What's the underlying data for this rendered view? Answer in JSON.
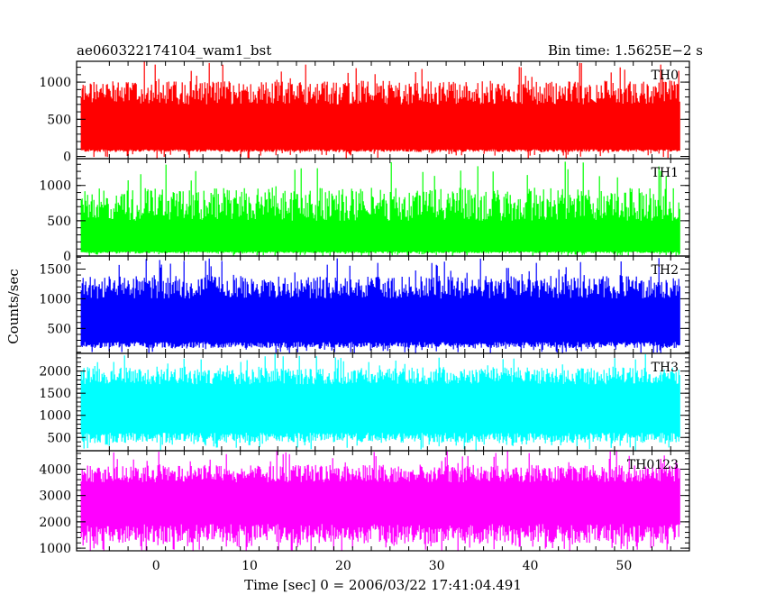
{
  "title_left": "ae060322174104_wam1_bst",
  "title_right": "Bin time: 1.5625E−2 s",
  "xlabel": "Time [sec] 0 = 2006/03/22 17:41:04.491",
  "ylabel": "Counts/sec",
  "chart_data": {
    "type": "line",
    "x_range": [
      -8.5,
      57
    ],
    "x_ticks": [
      0,
      10,
      20,
      30,
      40,
      50
    ],
    "x_tick_labels": [
      "0",
      "10",
      "20",
      "30",
      "40",
      "50"
    ],
    "x_data_range": [
      -8,
      56
    ],
    "bin_time": 0.015625,
    "series": [
      {
        "name": "TH0",
        "color": "#ff0000",
        "ylim": [
          -30,
          1280
        ],
        "y_ticks": [
          0,
          500,
          1000
        ],
        "y_tick_labels": [
          "0",
          "500",
          "1000"
        ],
        "baseline": 60,
        "peak_low": 700,
        "peak_high": 1280
      },
      {
        "name": "TH1",
        "color": "#00ff00",
        "ylim": [
          0,
          1380
        ],
        "y_ticks": [
          0,
          500,
          1000
        ],
        "y_tick_labels": [
          "0",
          "500",
          "1000"
        ],
        "baseline": 40,
        "peak_low": 500,
        "peak_high": 1350
      },
      {
        "name": "TH2",
        "color": "#0000ff",
        "ylim": [
          80,
          1720
        ],
        "y_ticks": [
          500,
          1000,
          1500
        ],
        "y_tick_labels": [
          "500",
          "1000",
          "1500"
        ],
        "baseline": 170,
        "peak_low": 1000,
        "peak_high": 1700
      },
      {
        "name": "TH3",
        "color": "#00ffff",
        "ylim": [
          200,
          2400
        ],
        "y_ticks": [
          500,
          1000,
          1500,
          2000
        ],
        "y_tick_labels": [
          "500",
          "1000",
          "1500",
          "2000"
        ],
        "baseline": 380,
        "peak_low": 1700,
        "peak_high": 2400
      },
      {
        "name": "TH0123",
        "color": "#ff00ff",
        "ylim": [
          900,
          4700
        ],
        "y_ticks": [
          1000,
          2000,
          3000,
          4000
        ],
        "y_tick_labels": [
          "1000",
          "2000",
          "3000",
          "4000"
        ],
        "baseline": 1200,
        "peak_low": 3500,
        "peak_high": 4700
      }
    ]
  }
}
